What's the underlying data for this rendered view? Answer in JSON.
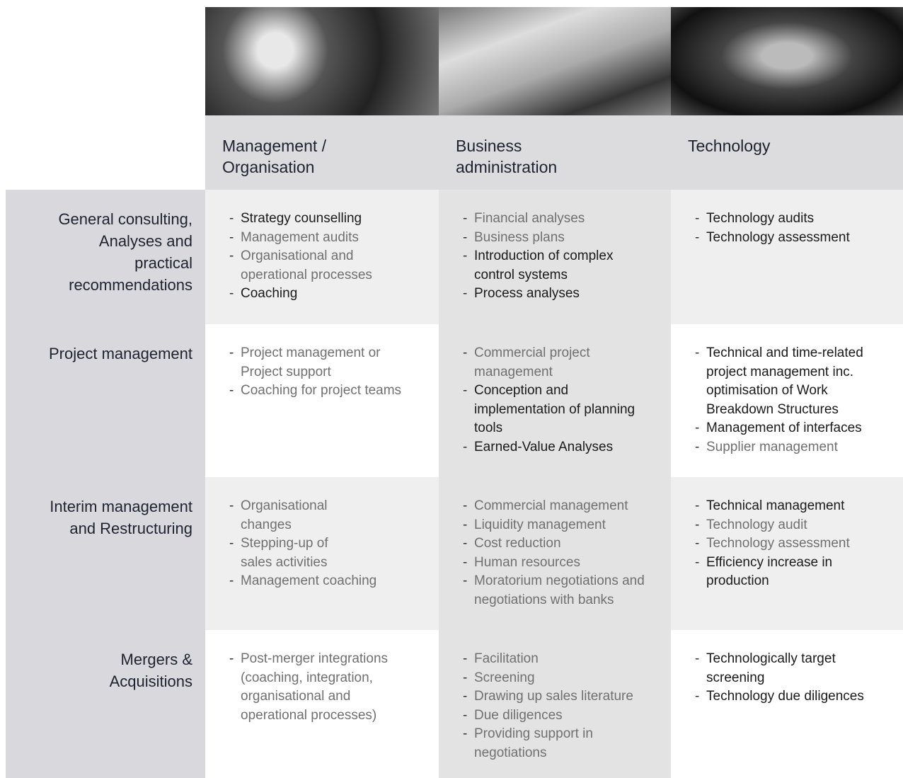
{
  "columns": [
    {
      "title": "Management /\nOrganisation"
    },
    {
      "title": "Business\nadministration"
    },
    {
      "title": "Technology"
    }
  ],
  "rows": [
    {
      "label": "General consulting,\nAnalyses and\npractical\nrecommendations",
      "cells": [
        {
          "items": [
            {
              "text": "Strategy counselling",
              "color": "#1a1a1a"
            },
            {
              "text": "Management audits",
              "color": "#707070"
            },
            {
              "text": "Organisational and\noperational processes",
              "color": "#707070"
            },
            {
              "text": "Coaching",
              "color": "#1a1a1a"
            }
          ]
        },
        {
          "items": [
            {
              "text": "Financial analyses",
              "color": "#707070"
            },
            {
              "text": "Business plans",
              "color": "#707070"
            },
            {
              "text": "Introduction of complex\ncontrol systems",
              "color": "#1a1a1a"
            },
            {
              "text": "Process analyses",
              "color": "#1a1a1a"
            }
          ]
        },
        {
          "items": [
            {
              "text": "Technology audits",
              "color": "#1a1a1a"
            },
            {
              "text": "Technology assessment",
              "color": "#1a1a1a"
            }
          ]
        }
      ]
    },
    {
      "label": "Project management",
      "cells": [
        {
          "items": [
            {
              "text": "Project management or\nProject support",
              "color": "#707070"
            },
            {
              "text": "Coaching for project teams",
              "color": "#707070"
            }
          ]
        },
        {
          "items": [
            {
              "text": "Commercial project\nmanagement",
              "color": "#707070"
            },
            {
              "text": "Conception and\nimplementation of planning\ntools",
              "color": "#1a1a1a"
            },
            {
              "text": "Earned-Value Analyses",
              "color": "#1a1a1a"
            }
          ]
        },
        {
          "items": [
            {
              "text": "Technical and time-related\nproject management inc.\noptimisation of Work\nBreakdown Structures",
              "color": "#1a1a1a"
            },
            {
              "text": "Management of interfaces",
              "color": "#1a1a1a"
            },
            {
              "text": "Supplier management",
              "color": "#707070"
            }
          ]
        }
      ]
    },
    {
      "label": "Interim management\nand Restructuring",
      "cells": [
        {
          "items": [
            {
              "text": "Organisational\nchanges",
              "color": "#707070"
            },
            {
              "text": "Stepping-up of\nsales activities",
              "color": "#707070"
            },
            {
              "text": "Management coaching",
              "color": "#707070"
            }
          ]
        },
        {
          "items": [
            {
              "text": "Commercial management",
              "color": "#707070"
            },
            {
              "text": "Liquidity management",
              "color": "#707070"
            },
            {
              "text": "Cost reduction",
              "color": "#707070"
            },
            {
              "text": "Human resources",
              "color": "#707070"
            },
            {
              "text": "Moratorium negotiations and\nnegotiations with banks",
              "color": "#707070"
            }
          ]
        },
        {
          "items": [
            {
              "text": "Technical management",
              "color": "#1a1a1a"
            },
            {
              "text": "Technology audit",
              "color": "#707070"
            },
            {
              "text": "Technology assessment",
              "color": "#707070"
            },
            {
              "text": "Efficiency increase in\nproduction",
              "color": "#1a1a1a"
            }
          ]
        }
      ]
    },
    {
      "label": "Mergers &\nAcquisitions",
      "cells": [
        {
          "items": [
            {
              "text": "Post-merger integrations\n(coaching, integration,\norganisational and\noperational processes)",
              "color": "#707070"
            }
          ]
        },
        {
          "items": [
            {
              "text": "Facilitation",
              "color": "#707070"
            },
            {
              "text": "Screening",
              "color": "#707070"
            },
            {
              "text": "Drawing up sales literature",
              "color": "#707070"
            },
            {
              "text": "Due diligences",
              "color": "#707070"
            },
            {
              "text": "Providing support in\nnegotiations",
              "color": "#707070"
            }
          ]
        },
        {
          "items": [
            {
              "text": "Technologically target\nscreening",
              "color": "#1a1a1a"
            },
            {
              "text": "Technology due diligences",
              "color": "#1a1a1a"
            }
          ]
        }
      ]
    }
  ]
}
